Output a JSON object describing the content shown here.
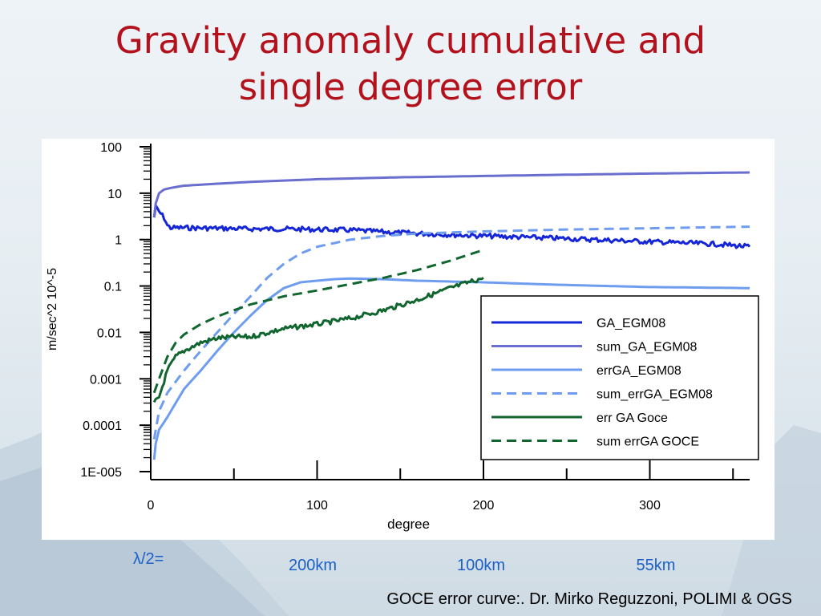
{
  "slide": {
    "title_line1": "Gravity anomaly cumulative and",
    "title_line2": "single degree error",
    "lambda_label": "λ/2=",
    "wavelengths": [
      "200km",
      "100km",
      "55km"
    ],
    "credit": "GOCE error curve:. Dr. Mirko Reguzzoni, POLIMI & OGS"
  },
  "chart_data": {
    "type": "line",
    "xlabel": "degree",
    "ylabel": "m/sec^2 10^-5",
    "xlim": [
      0,
      360
    ],
    "ylim": [
      1e-05,
      100
    ],
    "yscale": "log",
    "x_ticks": [
      0,
      100,
      200,
      300
    ],
    "x_tick_labels": [
      "0",
      "100",
      "200",
      "300"
    ],
    "y_ticks": [
      1e-05,
      0.0001,
      0.001,
      0.01,
      0.1,
      1,
      10,
      100
    ],
    "y_tick_labels": [
      "1E-005",
      "0.0001",
      "0.001",
      "0.01",
      "0.1",
      "1",
      "10",
      "100"
    ],
    "grid": false,
    "legend_position": "bottom-right",
    "series": [
      {
        "name": "GA_EGM08",
        "color": "#1426d6",
        "dash": "solid",
        "noisy": true,
        "x": [
          2,
          3,
          5,
          8,
          10,
          12,
          20,
          40,
          60,
          80,
          100,
          120,
          150,
          200,
          250,
          300,
          340,
          360
        ],
        "y": [
          3,
          5,
          4,
          3,
          2,
          1.8,
          1.8,
          1.75,
          1.7,
          1.7,
          1.65,
          1.6,
          1.4,
          1.2,
          1.05,
          0.9,
          0.8,
          0.7
        ]
      },
      {
        "name": "sum_GA_EGM08",
        "color": "#6a6fcf",
        "dash": "solid",
        "noisy": false,
        "x": [
          2,
          3,
          5,
          8,
          12,
          20,
          40,
          60,
          100,
          150,
          200,
          250,
          300,
          360
        ],
        "y": [
          3,
          6,
          10,
          12,
          13,
          14.5,
          16,
          17.5,
          20,
          22,
          23.5,
          25,
          26.5,
          28
        ]
      },
      {
        "name": "errGA_EGM08",
        "color": "#6e9df0",
        "dash": "solid",
        "noisy": false,
        "x": [
          2,
          3,
          5,
          10,
          20,
          30,
          40,
          50,
          60,
          70,
          80,
          90,
          100,
          110,
          120,
          140,
          160,
          200,
          250,
          300,
          360
        ],
        "y": [
          1.8e-05,
          4e-05,
          8e-05,
          0.00015,
          0.0006,
          0.0015,
          0.004,
          0.01,
          0.023,
          0.05,
          0.09,
          0.12,
          0.13,
          0.14,
          0.145,
          0.14,
          0.13,
          0.12,
          0.105,
          0.095,
          0.09
        ]
      },
      {
        "name": "sum_errGA_EGM08",
        "color": "#6e9df0",
        "dash": "dashed",
        "noisy": false,
        "x": [
          2,
          5,
          10,
          20,
          30,
          40,
          50,
          60,
          70,
          80,
          90,
          100,
          120,
          140,
          160,
          200,
          250,
          300,
          360
        ],
        "y": [
          5e-05,
          0.0002,
          0.0005,
          0.0015,
          0.004,
          0.01,
          0.025,
          0.06,
          0.15,
          0.3,
          0.5,
          0.7,
          1.0,
          1.2,
          1.35,
          1.5,
          1.65,
          1.75,
          1.9
        ]
      },
      {
        "name": "err GA Goce",
        "color": "#10662e",
        "dash": "solid",
        "noisy": true,
        "x": [
          2,
          5,
          10,
          15,
          20,
          30,
          40,
          50,
          60,
          80,
          100,
          120,
          140,
          160,
          180,
          200
        ],
        "y": [
          0.0003,
          0.0004,
          0.0015,
          0.003,
          0.004,
          0.006,
          0.0075,
          0.008,
          0.008,
          0.012,
          0.015,
          0.02,
          0.03,
          0.05,
          0.09,
          0.15
        ]
      },
      {
        "name": "sum errGA GOCE",
        "color": "#10662e",
        "dash": "dashed",
        "noisy": false,
        "x": [
          2,
          5,
          10,
          15,
          20,
          30,
          40,
          50,
          60,
          80,
          100,
          120,
          140,
          160,
          180,
          200
        ],
        "y": [
          0.0005,
          0.001,
          0.003,
          0.006,
          0.009,
          0.015,
          0.022,
          0.03,
          0.04,
          0.06,
          0.08,
          0.11,
          0.15,
          0.22,
          0.35,
          0.6
        ]
      }
    ]
  }
}
